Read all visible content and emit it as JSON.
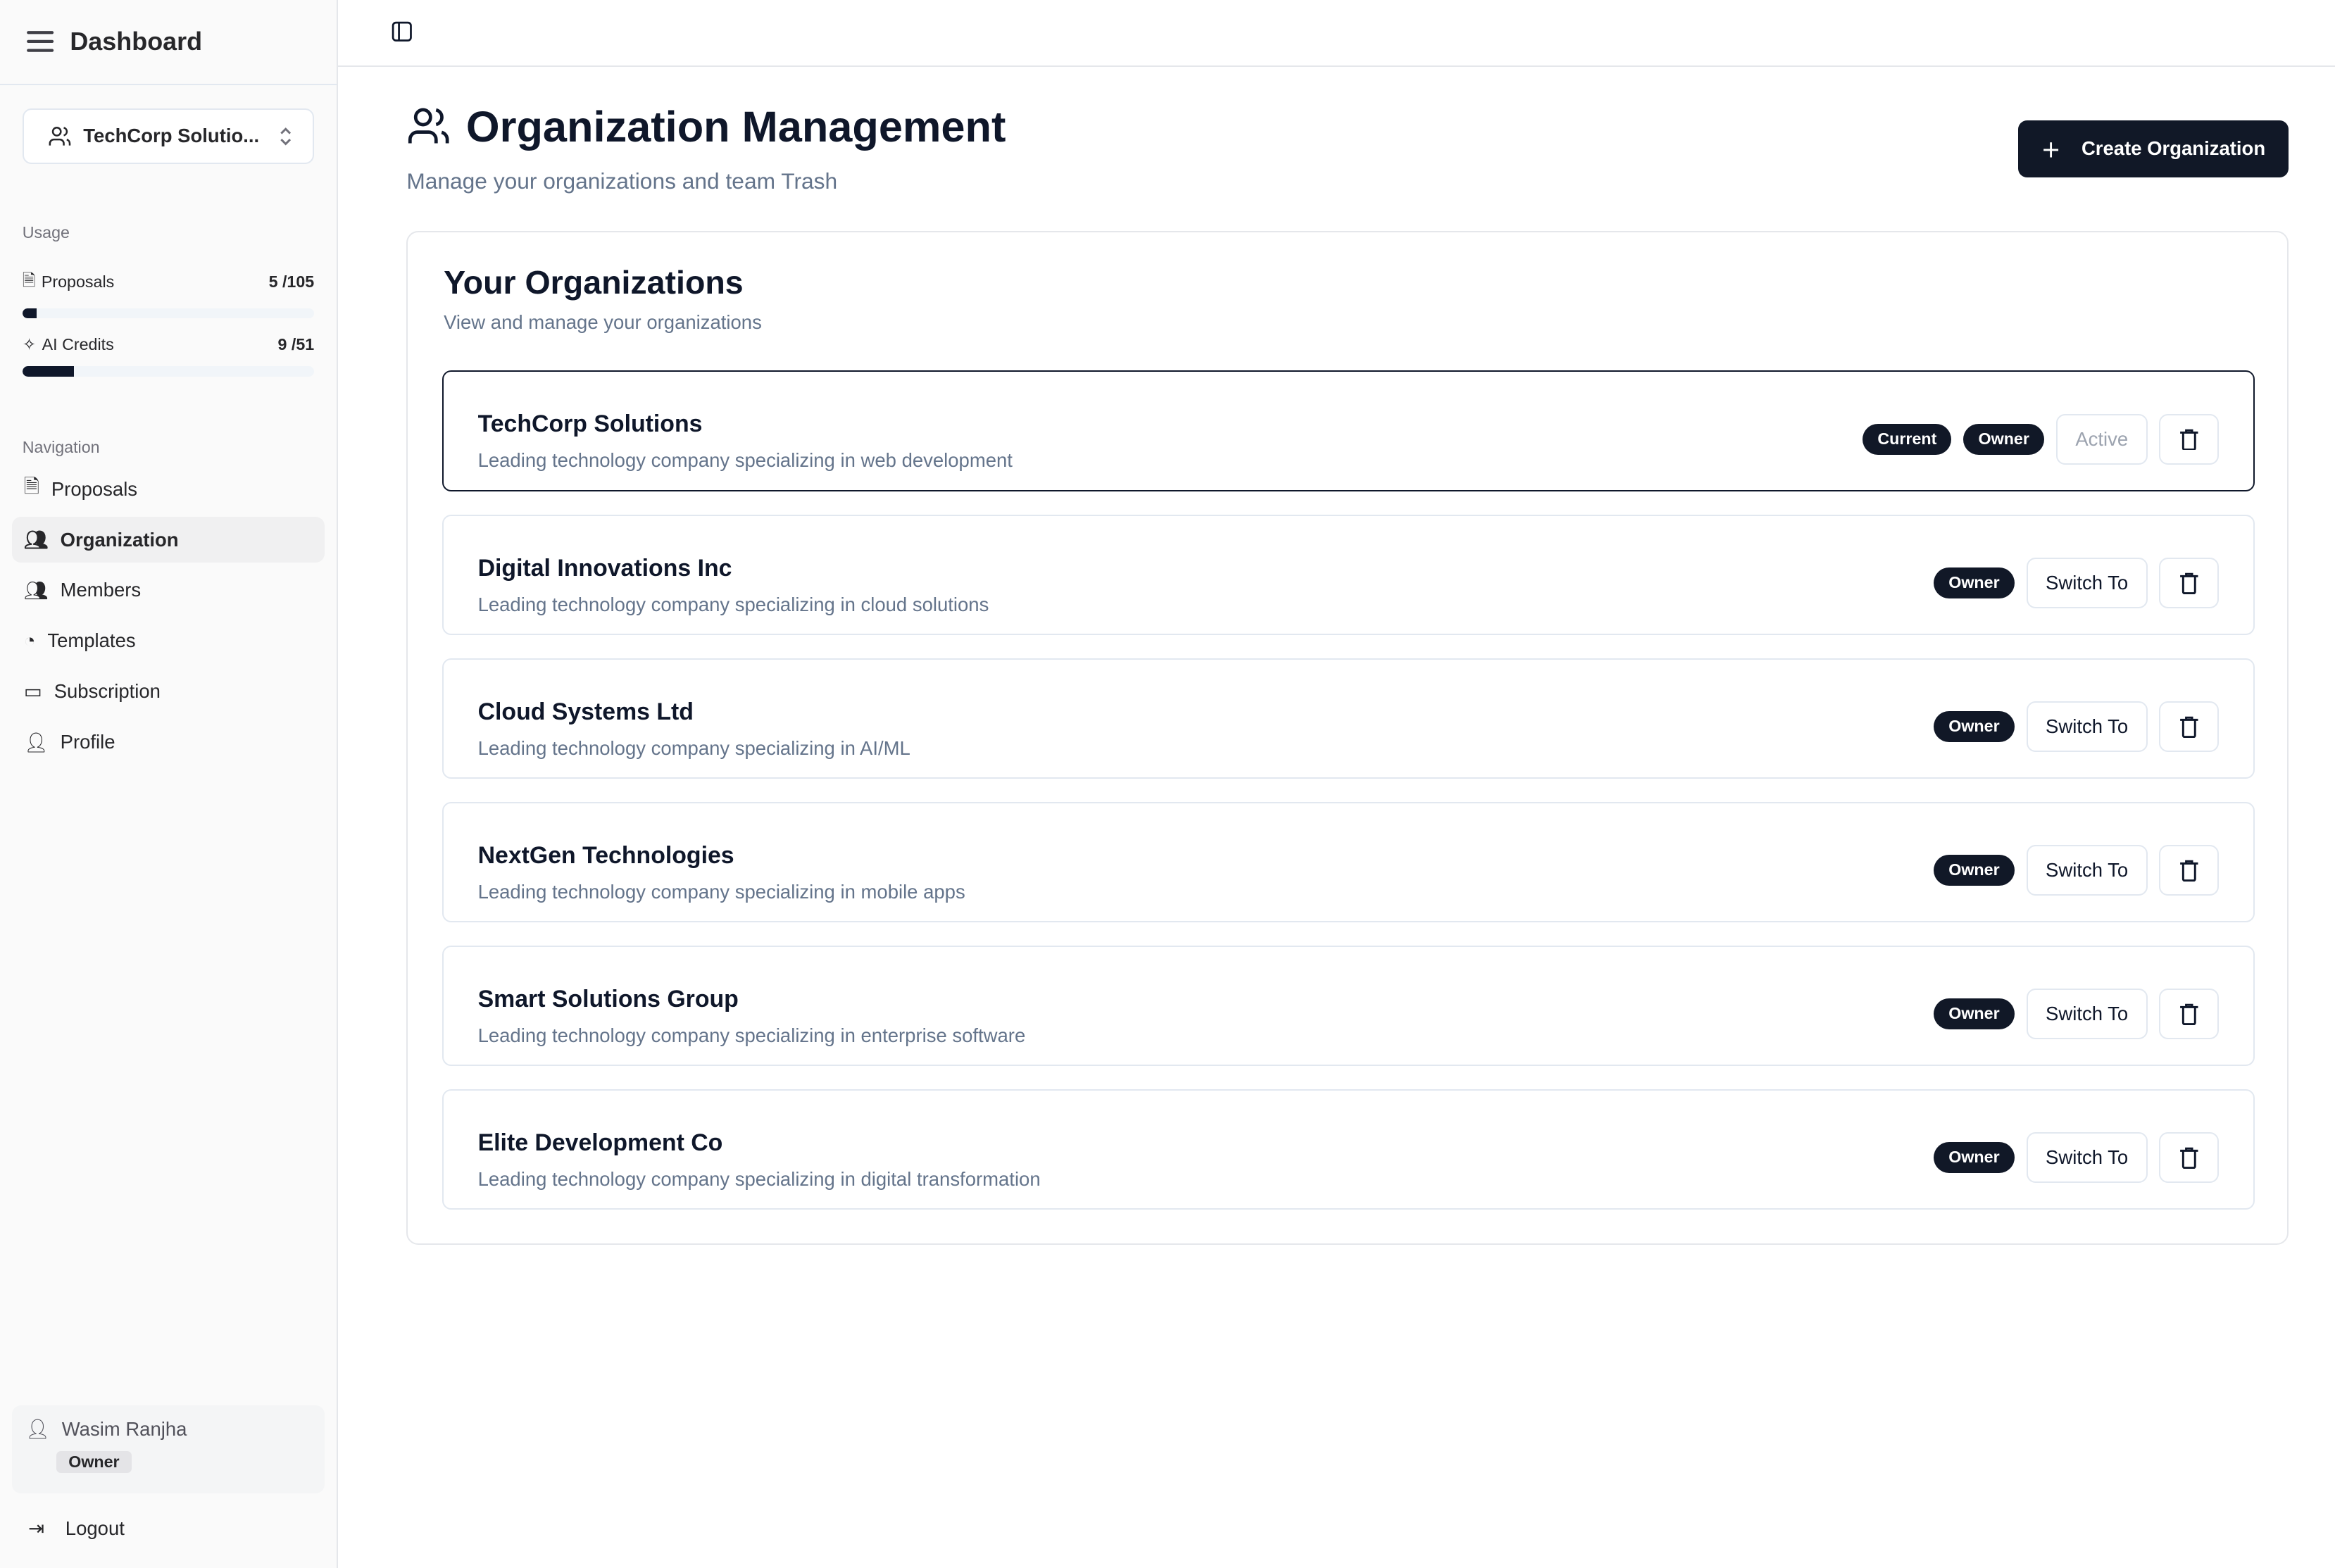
{
  "sidebar": {
    "title": "Dashboard",
    "org_selector": "TechCorp Solutio...",
    "usage_label": "Usage",
    "usage": [
      {
        "label": "Proposals",
        "value": "5 /105",
        "fraction": 0.048
      },
      {
        "label": "AI Credits",
        "value": "9 /51",
        "fraction": 0.176
      }
    ],
    "nav_label": "Navigation",
    "nav": [
      {
        "label": "Proposals",
        "icon": "file-icon"
      },
      {
        "label": "Organization",
        "icon": "users-icon",
        "active": true
      },
      {
        "label": "Members",
        "icon": "users-icon"
      },
      {
        "label": "Templates",
        "icon": "palette-icon"
      },
      {
        "label": "Subscription",
        "icon": "credit-card-icon"
      },
      {
        "label": "Profile",
        "icon": "user-icon"
      }
    ],
    "user": {
      "name": "Wasim Ranjha",
      "role": "Owner"
    },
    "logout": "Logout"
  },
  "page": {
    "title": "Organization Management",
    "subtitle": "Manage your organizations and team Trash",
    "create_button": "Create Organization"
  },
  "card": {
    "title": "Your Organizations",
    "subtitle": "View and manage your organizations"
  },
  "orgs": [
    {
      "name": "TechCorp Solutions",
      "desc": "Leading technology company specializing in web development",
      "badges": [
        "Current",
        "Owner"
      ],
      "action": "Active"
    },
    {
      "name": "Digital Innovations Inc",
      "desc": "Leading technology company specializing in cloud solutions",
      "badges": [
        "Owner"
      ],
      "action": "Switch To"
    },
    {
      "name": "Cloud Systems Ltd",
      "desc": "Leading technology company specializing in AI/ML",
      "badges": [
        "Owner"
      ],
      "action": "Switch To"
    },
    {
      "name": "NextGen Technologies",
      "desc": "Leading technology company specializing in mobile apps",
      "badges": [
        "Owner"
      ],
      "action": "Switch To"
    },
    {
      "name": "Smart Solutions Group",
      "desc": "Leading technology company specializing in enterprise software",
      "badges": [
        "Owner"
      ],
      "action": "Switch To"
    },
    {
      "name": "Elite Development Co",
      "desc": "Leading technology company specializing in digital transformation",
      "badges": [
        "Owner"
      ],
      "action": "Switch To"
    }
  ],
  "colors": {
    "primary": "#111827",
    "muted": "#64748b",
    "border": "#e2e8f0"
  }
}
